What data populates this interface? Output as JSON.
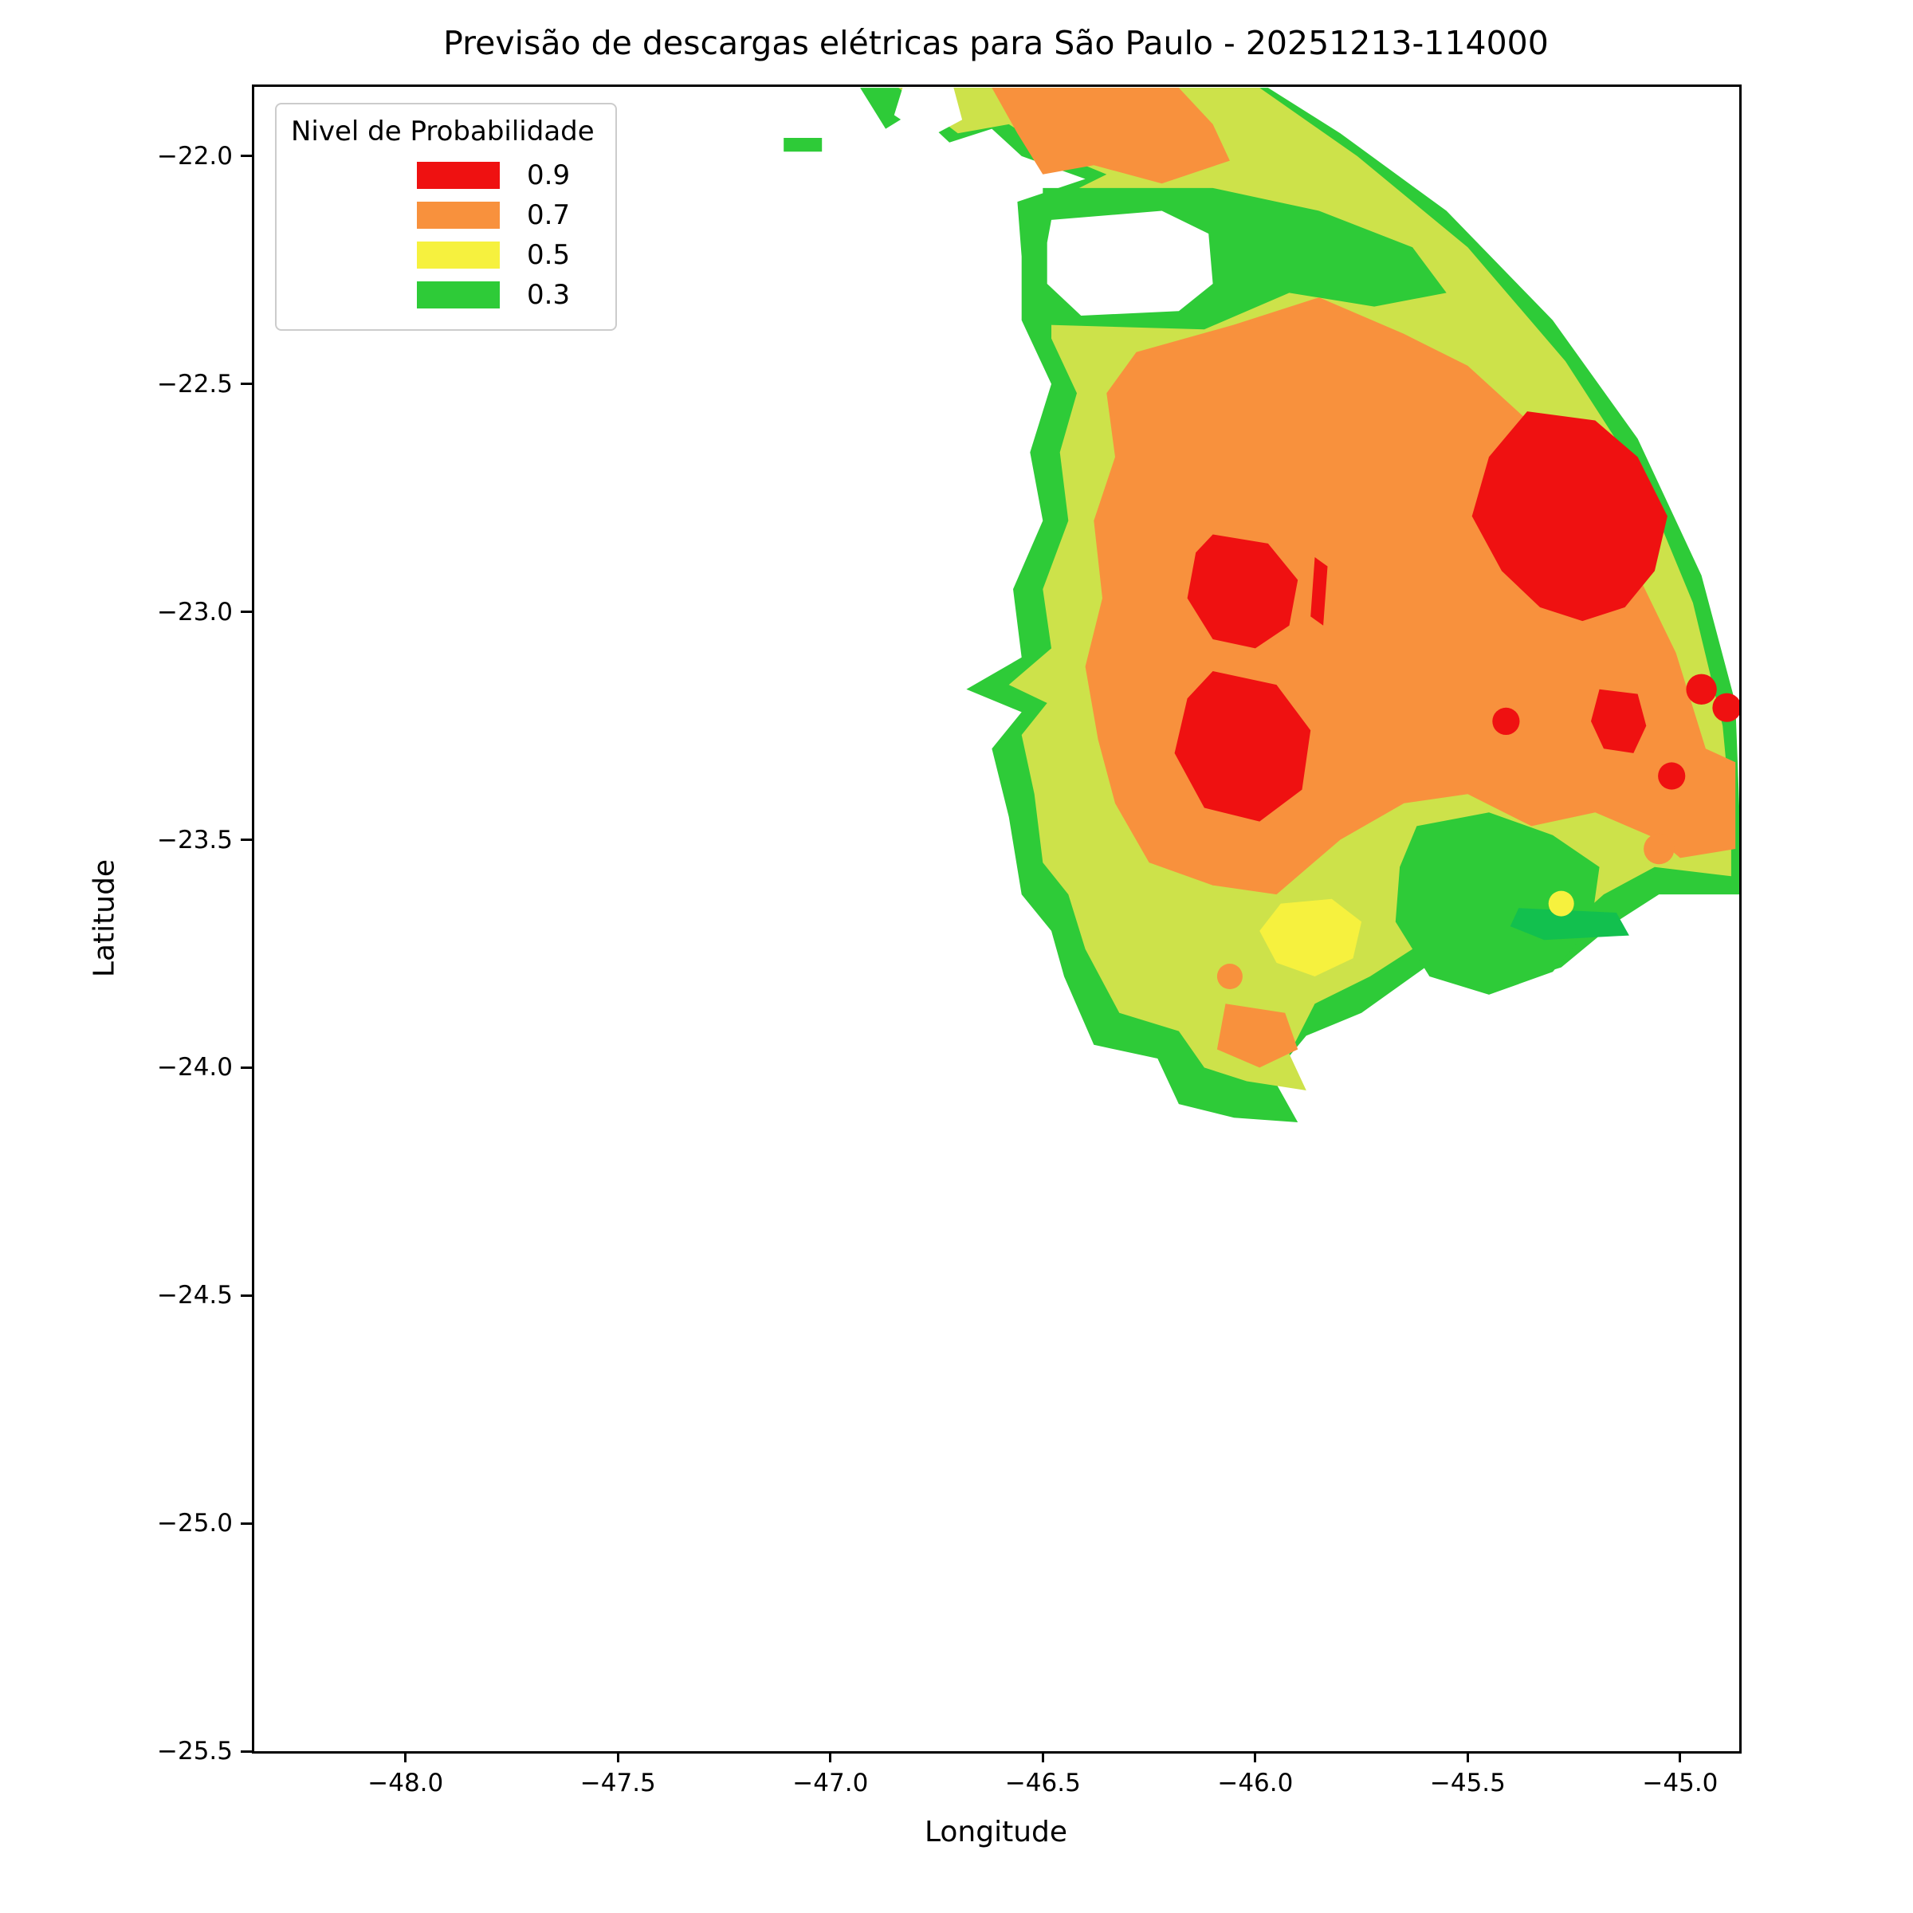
{
  "chart_data": {
    "type": "heatmap",
    "subtype": "filled_contour_probability_map",
    "title": "Previsão de descargas elétricas para São Paulo - 20251213-114000",
    "xlabel": "Longitude",
    "ylabel": "Latitude",
    "xlim": [
      -48.356,
      -44.861
    ],
    "ylim": [
      -25.5,
      -21.848
    ],
    "grid": false,
    "xticks": {
      "values": [
        -48.0,
        -47.5,
        -47.0,
        -46.5,
        -46.0,
        -45.5,
        -45.0
      ],
      "labels": [
        "−48.0",
        "−47.5",
        "−47.0",
        "−46.5",
        "−46.0",
        "−45.5",
        "−45.0"
      ]
    },
    "yticks": {
      "values": [
        -22.0,
        -22.5,
        -23.0,
        -23.5,
        -24.0,
        -24.5,
        -25.0,
        -25.5
      ],
      "labels": [
        "−22.0",
        "−22.5",
        "−23.0",
        "−23.5",
        "−24.0",
        "−24.5",
        "−25.0",
        "−25.5"
      ]
    },
    "legend": {
      "title": "Nivel de Probabilidade",
      "position": "upper-left",
      "entries": [
        {
          "label": "0.9",
          "color": "#ef1111"
        },
        {
          "label": "0.7",
          "color": "#f8913d"
        },
        {
          "label": "0.5",
          "color": "#f6f13e"
        },
        {
          "label": "0.3",
          "color": "#2ecb38"
        }
      ]
    },
    "probability_levels": [
      0.3,
      0.5,
      0.7,
      0.9
    ],
    "regions": [
      {
        "name": "green-dash-west",
        "level": 0.3,
        "color": "#2ecb38",
        "points": [
          [
            -47.11,
            -21.96
          ],
          [
            -47.02,
            -21.96
          ],
          [
            -47.02,
            -21.99
          ],
          [
            -47.11,
            -21.99
          ]
        ]
      },
      {
        "name": "outer-green",
        "level": 0.3,
        "color": "#2ecb38",
        "points": [
          [
            -46.93,
            -21.85
          ],
          [
            -45.97,
            -21.85
          ],
          [
            -45.8,
            -21.95
          ],
          [
            -45.55,
            -22.12
          ],
          [
            -45.3,
            -22.36
          ],
          [
            -45.1,
            -22.62
          ],
          [
            -44.95,
            -22.92
          ],
          [
            -44.87,
            -23.2
          ],
          [
            -44.86,
            -23.45
          ],
          [
            -44.86,
            -23.62
          ],
          [
            -45.05,
            -23.62
          ],
          [
            -45.15,
            -23.68
          ],
          [
            -45.28,
            -23.78
          ],
          [
            -45.45,
            -23.83
          ],
          [
            -45.6,
            -23.78
          ],
          [
            -45.75,
            -23.88
          ],
          [
            -45.88,
            -23.93
          ],
          [
            -45.96,
            -24.02
          ],
          [
            -45.9,
            -24.12
          ],
          [
            -46.05,
            -24.11
          ],
          [
            -46.18,
            -24.08
          ],
          [
            -46.23,
            -23.98
          ],
          [
            -46.38,
            -23.95
          ],
          [
            -46.45,
            -23.8
          ],
          [
            -46.48,
            -23.7
          ],
          [
            -46.55,
            -23.62
          ],
          [
            -46.58,
            -23.45
          ],
          [
            -46.62,
            -23.3
          ],
          [
            -46.55,
            -23.22
          ],
          [
            -46.68,
            -23.17
          ],
          [
            -46.55,
            -23.1
          ],
          [
            -46.57,
            -22.95
          ],
          [
            -46.5,
            -22.8
          ],
          [
            -46.53,
            -22.65
          ],
          [
            -46.48,
            -22.5
          ],
          [
            -46.55,
            -22.36
          ],
          [
            -46.55,
            -22.22
          ],
          [
            -46.56,
            -22.1
          ],
          [
            -46.4,
            -22.05
          ],
          [
            -46.55,
            -22.0
          ],
          [
            -46.62,
            -21.94
          ],
          [
            -46.72,
            -21.97
          ],
          [
            -46.8,
            -21.9
          ],
          [
            -46.87,
            -21.94
          ]
        ]
      },
      {
        "name": "yellow-green-base",
        "level": 0.4,
        "color": "#cde24a",
        "points": [
          [
            -46.84,
            -21.85
          ],
          [
            -45.99,
            -21.85
          ],
          [
            -45.76,
            -22.0
          ],
          [
            -45.5,
            -22.2
          ],
          [
            -45.27,
            -22.45
          ],
          [
            -45.09,
            -22.71
          ],
          [
            -44.97,
            -22.98
          ],
          [
            -44.9,
            -23.25
          ],
          [
            -44.88,
            -23.45
          ],
          [
            -44.88,
            -23.58
          ],
          [
            -45.06,
            -23.56
          ],
          [
            -45.18,
            -23.62
          ],
          [
            -45.3,
            -23.72
          ],
          [
            -45.45,
            -23.76
          ],
          [
            -45.58,
            -23.71
          ],
          [
            -45.73,
            -23.8
          ],
          [
            -45.86,
            -23.86
          ],
          [
            -45.92,
            -23.97
          ],
          [
            -45.88,
            -24.05
          ],
          [
            -46.02,
            -24.03
          ],
          [
            -46.12,
            -24.0
          ],
          [
            -46.18,
            -23.92
          ],
          [
            -46.32,
            -23.88
          ],
          [
            -46.4,
            -23.74
          ],
          [
            -46.44,
            -23.62
          ],
          [
            -46.5,
            -23.55
          ],
          [
            -46.52,
            -23.4
          ],
          [
            -46.55,
            -23.27
          ],
          [
            -46.49,
            -23.2
          ],
          [
            -46.58,
            -23.16
          ],
          [
            -46.48,
            -23.08
          ],
          [
            -46.5,
            -22.95
          ],
          [
            -46.44,
            -22.8
          ],
          [
            -46.46,
            -22.65
          ],
          [
            -46.42,
            -22.52
          ],
          [
            -46.48,
            -22.4
          ],
          [
            -46.48,
            -22.24
          ],
          [
            -46.48,
            -22.1
          ],
          [
            -46.35,
            -22.04
          ],
          [
            -46.48,
            -21.99
          ],
          [
            -46.58,
            -21.93
          ],
          [
            -46.7,
            -21.95
          ]
        ]
      },
      {
        "name": "green-band-north",
        "level": 0.3,
        "color": "#2ecb38",
        "points": [
          [
            -46.5,
            -22.07
          ],
          [
            -46.1,
            -22.07
          ],
          [
            -45.85,
            -22.12
          ],
          [
            -45.63,
            -22.2
          ],
          [
            -45.55,
            -22.3
          ],
          [
            -45.72,
            -22.33
          ],
          [
            -45.92,
            -22.3
          ],
          [
            -46.12,
            -22.38
          ],
          [
            -46.5,
            -22.37
          ]
        ]
      },
      {
        "name": "orange-north-lobe",
        "level": 0.7,
        "color": "#f8913d",
        "points": [
          [
            -46.62,
            -21.85
          ],
          [
            -46.18,
            -21.85
          ],
          [
            -46.1,
            -21.93
          ],
          [
            -46.06,
            -22.01
          ],
          [
            -46.22,
            -22.06
          ],
          [
            -46.38,
            -22.02
          ],
          [
            -46.5,
            -22.04
          ],
          [
            -46.56,
            -21.95
          ]
        ]
      },
      {
        "name": "orange-main",
        "level": 0.7,
        "color": "#f8913d",
        "points": [
          [
            -46.28,
            -22.43
          ],
          [
            -46.05,
            -22.37
          ],
          [
            -45.85,
            -22.31
          ],
          [
            -45.65,
            -22.39
          ],
          [
            -45.5,
            -22.46
          ],
          [
            -45.3,
            -22.63
          ],
          [
            -45.13,
            -22.86
          ],
          [
            -45.01,
            -23.09
          ],
          [
            -44.94,
            -23.3
          ],
          [
            -44.87,
            -23.33
          ],
          [
            -44.87,
            -23.52
          ],
          [
            -45.0,
            -23.54
          ],
          [
            -45.05,
            -23.5
          ],
          [
            -45.2,
            -23.44
          ],
          [
            -45.35,
            -23.47
          ],
          [
            -45.5,
            -23.4
          ],
          [
            -45.65,
            -23.42
          ],
          [
            -45.8,
            -23.5
          ],
          [
            -45.95,
            -23.62
          ],
          [
            -46.1,
            -23.6
          ],
          [
            -46.25,
            -23.55
          ],
          [
            -46.33,
            -23.42
          ],
          [
            -46.37,
            -23.28
          ],
          [
            -46.4,
            -23.12
          ],
          [
            -46.36,
            -22.97
          ],
          [
            -46.38,
            -22.8
          ],
          [
            -46.33,
            -22.66
          ],
          [
            -46.35,
            -22.52
          ]
        ]
      },
      {
        "name": "green-southeast-patch",
        "level": 0.3,
        "color": "#2ecb38",
        "points": [
          [
            -45.62,
            -23.47
          ],
          [
            -45.45,
            -23.44
          ],
          [
            -45.3,
            -23.49
          ],
          [
            -45.19,
            -23.56
          ],
          [
            -45.21,
            -23.69
          ],
          [
            -45.3,
            -23.79
          ],
          [
            -45.45,
            -23.84
          ],
          [
            -45.59,
            -23.8
          ],
          [
            -45.67,
            -23.68
          ],
          [
            -45.66,
            -23.56
          ]
        ]
      },
      {
        "name": "green-dark-stripe",
        "level": 0.3,
        "color": "#12c04e",
        "points": [
          [
            -45.38,
            -23.65
          ],
          [
            -45.15,
            -23.66
          ],
          [
            -45.12,
            -23.71
          ],
          [
            -45.32,
            -23.72
          ],
          [
            -45.4,
            -23.69
          ]
        ]
      },
      {
        "name": "red-northeast-core",
        "level": 0.9,
        "color": "#ef1111",
        "points": [
          [
            -45.36,
            -22.56
          ],
          [
            -45.2,
            -22.58
          ],
          [
            -45.1,
            -22.66
          ],
          [
            -45.03,
            -22.79
          ],
          [
            -45.06,
            -22.91
          ],
          [
            -45.13,
            -22.99
          ],
          [
            -45.23,
            -23.02
          ],
          [
            -45.33,
            -22.99
          ],
          [
            -45.42,
            -22.91
          ],
          [
            -45.49,
            -22.79
          ],
          [
            -45.45,
            -22.66
          ]
        ]
      },
      {
        "name": "red-central-upper-core",
        "level": 0.9,
        "color": "#ef1111",
        "points": [
          [
            -46.1,
            -22.83
          ],
          [
            -45.97,
            -22.85
          ],
          [
            -45.9,
            -22.93
          ],
          [
            -45.92,
            -23.03
          ],
          [
            -46.0,
            -23.08
          ],
          [
            -46.1,
            -23.06
          ],
          [
            -46.16,
            -22.97
          ],
          [
            -46.14,
            -22.87
          ]
        ]
      },
      {
        "name": "red-central-upper-sliver",
        "level": 0.9,
        "color": "#ef1111",
        "points": [
          [
            -45.86,
            -22.88
          ],
          [
            -45.83,
            -22.9
          ],
          [
            -45.84,
            -23.03
          ],
          [
            -45.87,
            -23.01
          ]
        ]
      },
      {
        "name": "red-central-lower-core",
        "level": 0.9,
        "color": "#ef1111",
        "points": [
          [
            -46.1,
            -23.13
          ],
          [
            -45.95,
            -23.16
          ],
          [
            -45.87,
            -23.26
          ],
          [
            -45.89,
            -23.39
          ],
          [
            -45.99,
            -23.46
          ],
          [
            -46.12,
            -23.43
          ],
          [
            -46.19,
            -23.31
          ],
          [
            -46.16,
            -23.19
          ]
        ]
      },
      {
        "name": "red-east-small-core",
        "level": 0.9,
        "color": "#ef1111",
        "points": [
          [
            -45.19,
            -23.17
          ],
          [
            -45.1,
            -23.18
          ],
          [
            -45.08,
            -23.25
          ],
          [
            -45.11,
            -23.31
          ],
          [
            -45.18,
            -23.3
          ],
          [
            -45.21,
            -23.24
          ]
        ]
      },
      {
        "name": "yellow-south-patch",
        "level": 0.5,
        "color": "#f6f13e",
        "points": [
          [
            -45.94,
            -23.64
          ],
          [
            -45.82,
            -23.63
          ],
          [
            -45.75,
            -23.68
          ],
          [
            -45.77,
            -23.76
          ],
          [
            -45.86,
            -23.8
          ],
          [
            -45.95,
            -23.77
          ],
          [
            -45.99,
            -23.7
          ]
        ]
      },
      {
        "name": "orange-south-patch",
        "level": 0.7,
        "color": "#f8913d",
        "points": [
          [
            -46.07,
            -23.86
          ],
          [
            -45.93,
            -23.88
          ],
          [
            -45.9,
            -23.96
          ],
          [
            -45.99,
            -24.0
          ],
          [
            -46.09,
            -23.96
          ]
        ]
      },
      {
        "name": "white-hole",
        "level": 0.0,
        "color": "#ffffff",
        "points": [
          [
            -46.48,
            -22.14
          ],
          [
            -46.22,
            -22.12
          ],
          [
            -46.11,
            -22.17
          ],
          [
            -46.1,
            -22.28
          ],
          [
            -46.18,
            -22.34
          ],
          [
            -46.41,
            -22.35
          ],
          [
            -46.49,
            -22.28
          ],
          [
            -46.49,
            -22.19
          ]
        ]
      },
      {
        "name": "white-top-notch",
        "level": 0.0,
        "color": "#ffffff",
        "points": [
          [
            -46.83,
            -21.85
          ],
          [
            -46.71,
            -21.85
          ],
          [
            -46.69,
            -21.92
          ],
          [
            -46.77,
            -21.96
          ],
          [
            -46.85,
            -21.91
          ]
        ]
      }
    ],
    "dots": [
      {
        "name": "red-dot-1",
        "x": -45.41,
        "y": -23.24,
        "r": 0.032,
        "color": "#ef1111"
      },
      {
        "name": "red-dot-2",
        "x": -44.95,
        "y": -23.17,
        "r": 0.036,
        "color": "#ef1111"
      },
      {
        "name": "red-dot-3",
        "x": -44.89,
        "y": -23.21,
        "r": 0.034,
        "color": "#ef1111"
      },
      {
        "name": "red-dot-4",
        "x": -45.02,
        "y": -23.36,
        "r": 0.032,
        "color": "#ef1111"
      },
      {
        "name": "orange-dot-1",
        "x": -46.06,
        "y": -23.8,
        "r": 0.03,
        "color": "#f8913d"
      },
      {
        "name": "orange-dot-2",
        "x": -45.05,
        "y": -23.52,
        "r": 0.036,
        "color": "#f8913d"
      },
      {
        "name": "yellow-dot-1",
        "x": -45.28,
        "y": -23.64,
        "r": 0.03,
        "color": "#f6f13e"
      }
    ]
  }
}
